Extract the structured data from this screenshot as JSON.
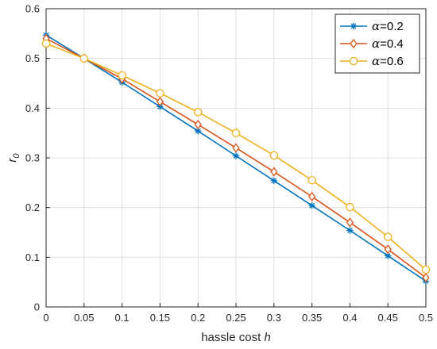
{
  "chart_data": {
    "type": "line",
    "title": "",
    "xlabel": "hassle cost",
    "xlabel_var": "h",
    "ylabel": "r",
    "ylabel_sub": "0",
    "xlim": [
      0,
      0.5
    ],
    "ylim": [
      0,
      0.6
    ],
    "xticks": [
      0,
      0.05,
      0.1,
      0.15,
      0.2,
      0.25,
      0.3,
      0.35,
      0.4,
      0.45,
      0.5
    ],
    "xtick_labels": [
      "0",
      "0.05",
      "0.1",
      "0.15",
      "0.2",
      "0.25",
      "0.3",
      "0.35",
      "0.4",
      "0.45",
      "0.5"
    ],
    "yticks": [
      0,
      0.1,
      0.2,
      0.3,
      0.4,
      0.5,
      0.6
    ],
    "ytick_labels": [
      "0",
      "0.1",
      "0.2",
      "0.3",
      "0.4",
      "0.5",
      "0.6"
    ],
    "grid": true,
    "legend_position": "top-right",
    "x": [
      0,
      0.05,
      0.1,
      0.15,
      0.2,
      0.25,
      0.3,
      0.35,
      0.4,
      0.45,
      0.5
    ],
    "series": [
      {
        "name": "α=0.2",
        "legend_symbol": "α",
        "legend_value": "=0.2",
        "marker": "asterisk",
        "color": "#0072BD",
        "values": [
          0.547,
          0.5,
          0.452,
          0.403,
          0.354,
          0.304,
          0.254,
          0.204,
          0.154,
          0.103,
          0.052
        ]
      },
      {
        "name": "α=0.4",
        "legend_symbol": "α",
        "legend_value": "=0.4",
        "marker": "diamond",
        "color": "#D95319",
        "values": [
          0.54,
          0.5,
          0.459,
          0.413,
          0.367,
          0.32,
          0.272,
          0.222,
          0.17,
          0.116,
          0.059
        ]
      },
      {
        "name": "α=0.6",
        "legend_symbol": "α",
        "legend_value": "=0.6",
        "marker": "circle",
        "color": "#EDB120",
        "values": [
          0.53,
          0.5,
          0.466,
          0.43,
          0.392,
          0.35,
          0.305,
          0.255,
          0.201,
          0.141,
          0.075
        ]
      }
    ]
  }
}
